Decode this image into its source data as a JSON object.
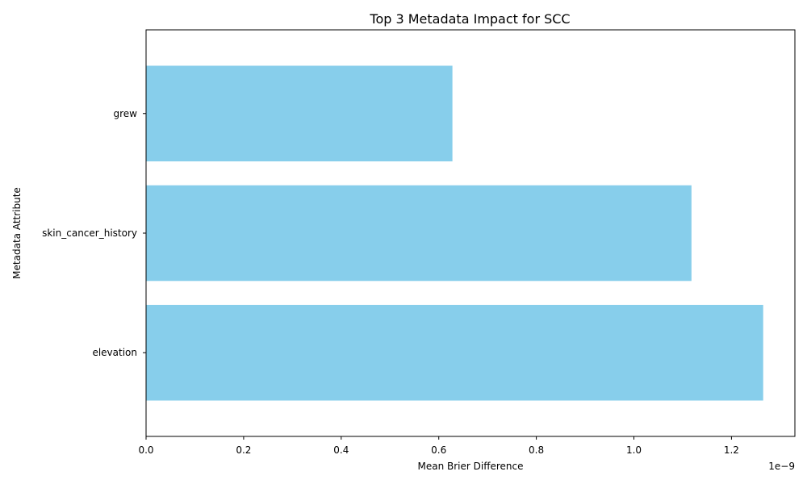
{
  "chart_data": {
    "type": "bar",
    "orientation": "horizontal",
    "title": "Top 3 Metadata Impact for SCC",
    "xlabel": "Mean Brier Difference",
    "ylabel": "Metadata Attribute",
    "x_scale_label": "1e−9",
    "categories": [
      "elevation",
      "skin_cancer_history",
      "grew"
    ],
    "values": [
      1.265,
      1.118,
      0.628
    ],
    "value_multiplier": 1e-09,
    "xlim": [
      0,
      1.33
    ],
    "xticks": [
      0.0,
      0.2,
      0.4,
      0.6,
      0.8,
      1.0,
      1.2
    ],
    "xtick_labels": [
      "0.0",
      "0.2",
      "0.4",
      "0.6",
      "0.8",
      "1.0",
      "1.2"
    ],
    "bar_color": "#87ceeb",
    "grid": false,
    "legend": "none"
  }
}
